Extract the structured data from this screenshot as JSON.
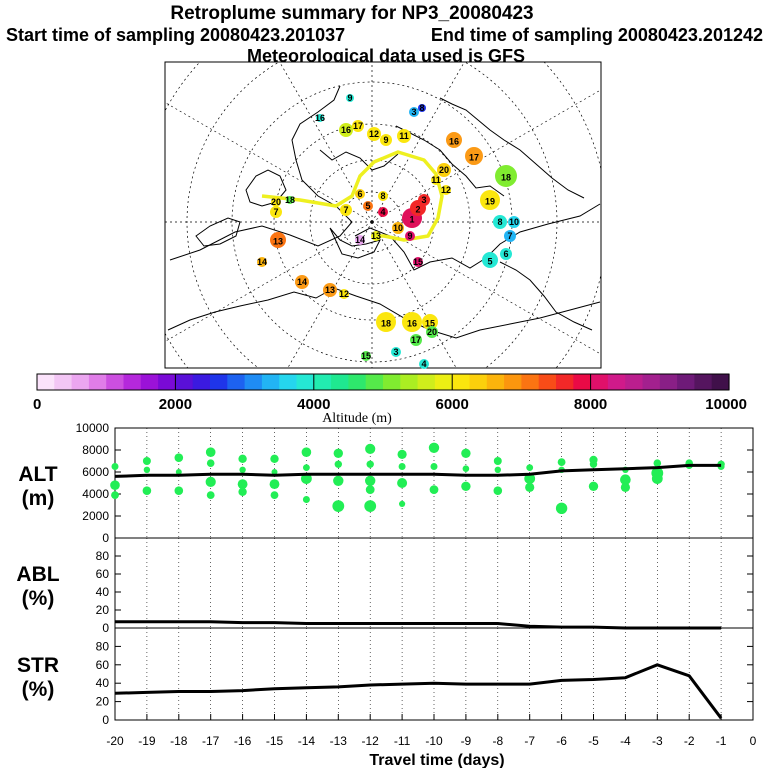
{
  "title": "Retroplume summary for NP3_20080423",
  "start_label": "Start time of sampling 20080423.201037",
  "end_label": "End time of sampling 20080423.201242",
  "met_label": "Meteorological data used is GFS",
  "colorbar": {
    "label": "Altitude (m)",
    "ticks": [
      "0",
      "2000",
      "4000",
      "6000",
      "8000",
      "10000"
    ],
    "colors": [
      "#fbe3fb",
      "#f3c6f5",
      "#eba6f0",
      "#e07de8",
      "#cc4fe0",
      "#b528dc",
      "#9b12d8",
      "#7a0ad6",
      "#5a10d8",
      "#3b1ae0",
      "#1f35ea",
      "#1d62f0",
      "#1f8cf4",
      "#22b4f4",
      "#25d6ee",
      "#25e8d4",
      "#22ecb0",
      "#1fe890",
      "#2ee86c",
      "#55ea4a",
      "#80ec30",
      "#abee22",
      "#cfee1c",
      "#ecef14",
      "#fbe60e",
      "#fcd00c",
      "#fcb40c",
      "#fc960e",
      "#fb7412",
      "#f84c18",
      "#f22828",
      "#ea0a46",
      "#e0106a",
      "#d01a8a",
      "#bb1e8e",
      "#a3208e",
      "#891f86",
      "#6e1a78",
      "#55155f",
      "#40104a"
    ]
  },
  "map_labels": [
    {
      "t": "1"
    },
    {
      "t": "2"
    },
    {
      "t": "3"
    },
    {
      "t": "4"
    },
    {
      "t": "5"
    },
    {
      "t": "6"
    },
    {
      "t": "7"
    },
    {
      "t": "8"
    },
    {
      "t": "9"
    },
    {
      "t": "10"
    },
    {
      "t": "11"
    },
    {
      "t": "12"
    },
    {
      "t": "13"
    },
    {
      "t": "14"
    },
    {
      "t": "15"
    },
    {
      "t": "16"
    },
    {
      "t": "17"
    },
    {
      "t": "18"
    },
    {
      "t": "19"
    },
    {
      "t": "20"
    },
    {
      "t": "5"
    },
    {
      "t": "6"
    },
    {
      "t": "7"
    },
    {
      "t": "8"
    },
    {
      "t": "10"
    },
    {
      "t": "13"
    },
    {
      "t": "14"
    },
    {
      "t": "14"
    },
    {
      "t": "13"
    },
    {
      "t": "12"
    },
    {
      "t": "18"
    },
    {
      "t": "16"
    },
    {
      "t": "15"
    },
    {
      "t": "17"
    },
    {
      "t": "20"
    },
    {
      "t": "3"
    },
    {
      "t": "4"
    },
    {
      "t": "15"
    },
    {
      "t": "16"
    },
    {
      "t": "17"
    },
    {
      "t": "12"
    },
    {
      "t": "11"
    },
    {
      "t": "9"
    },
    {
      "t": "3"
    },
    {
      "t": "8"
    },
    {
      "t": "9"
    },
    {
      "t": "7"
    },
    {
      "t": "20"
    },
    {
      "t": "18"
    },
    {
      "t": "16"
    }
  ],
  "chart_data": {
    "x": [
      -20,
      -19,
      -18,
      -17,
      -16,
      -15,
      -14,
      -13,
      -12,
      -11,
      -10,
      -9,
      -8,
      -7,
      -6,
      -5,
      -4,
      -3,
      -2,
      -1
    ],
    "xlabel": "Travel time (days)",
    "xticks": [
      "-20",
      "-19",
      "-18",
      "-17",
      "-16",
      "-15",
      "-14",
      "-13",
      "-12",
      "-11",
      "-10",
      "-9",
      "-8",
      "-7",
      "-6",
      "-5",
      "-4",
      "-3",
      "-2",
      "-1",
      "0"
    ],
    "panels": [
      {
        "name": "ALT",
        "label_top": "ALT",
        "label_bottom": "(m)",
        "yticks": [
          "0",
          "2000",
          "4000",
          "6000",
          "8000",
          "10000"
        ],
        "ylim": [
          0,
          10000
        ],
        "type": "line+scatter",
        "line_x": [
          -20,
          -19,
          -18,
          -17,
          -16,
          -15,
          -14,
          -13,
          -12,
          -11,
          -10,
          -9,
          -8,
          -7,
          -6,
          -5,
          -4,
          -3,
          -2,
          -1
        ],
        "line_y": [
          5600,
          5700,
          5700,
          5800,
          5800,
          5700,
          5800,
          5800,
          5800,
          5800,
          5800,
          5700,
          5700,
          5800,
          6100,
          6200,
          6300,
          6400,
          6600,
          6600
        ],
        "scatter": [
          [
            -20,
            6500
          ],
          [
            -20,
            4800
          ],
          [
            -20,
            3900
          ],
          [
            -19,
            7000
          ],
          [
            -19,
            6200
          ],
          [
            -19,
            4300
          ],
          [
            -18,
            7300
          ],
          [
            -18,
            6000
          ],
          [
            -18,
            4300
          ],
          [
            -17,
            7800
          ],
          [
            -17,
            6800
          ],
          [
            -17,
            5100
          ],
          [
            -17,
            3900
          ],
          [
            -16,
            7200
          ],
          [
            -16,
            6200
          ],
          [
            -16,
            4900
          ],
          [
            -16,
            4200
          ],
          [
            -15,
            7200
          ],
          [
            -15,
            6000
          ],
          [
            -15,
            4900
          ],
          [
            -15,
            3900
          ],
          [
            -14,
            7800
          ],
          [
            -14,
            6400
          ],
          [
            -14,
            5400
          ],
          [
            -14,
            3500
          ],
          [
            -13,
            7700
          ],
          [
            -13,
            6700
          ],
          [
            -13,
            5200
          ],
          [
            -13,
            2900
          ],
          [
            -12,
            8100
          ],
          [
            -12,
            6700
          ],
          [
            -12,
            5200
          ],
          [
            -12,
            4400
          ],
          [
            -12,
            2900
          ],
          [
            -11,
            7600
          ],
          [
            -11,
            6500
          ],
          [
            -11,
            5000
          ],
          [
            -11,
            3100
          ],
          [
            -10,
            8200
          ],
          [
            -10,
            6500
          ],
          [
            -10,
            4400
          ],
          [
            -9,
            7700
          ],
          [
            -9,
            6300
          ],
          [
            -9,
            4700
          ],
          [
            -8,
            7000
          ],
          [
            -8,
            6200
          ],
          [
            -8,
            4300
          ],
          [
            -7,
            6400
          ],
          [
            -7,
            5400
          ],
          [
            -7,
            4600
          ],
          [
            -6,
            6900
          ],
          [
            -6,
            6200
          ],
          [
            -6,
            2700
          ],
          [
            -5,
            7100
          ],
          [
            -5,
            6700
          ],
          [
            -5,
            4700
          ],
          [
            -4,
            6200
          ],
          [
            -4,
            5300
          ],
          [
            -4,
            4600
          ],
          [
            -3,
            6800
          ],
          [
            -3,
            5900
          ],
          [
            -3,
            5400
          ],
          [
            -2,
            6800
          ],
          [
            -2,
            6600
          ],
          [
            -1,
            6700
          ],
          [
            -1,
            6500
          ]
        ],
        "scatter_color": "#22ee55"
      },
      {
        "name": "ABL",
        "label_top": "ABL",
        "label_bottom": "(%)",
        "yticks": [
          "0",
          "20",
          "40",
          "60",
          "80"
        ],
        "ylim": [
          0,
          100
        ],
        "type": "line",
        "line_x": [
          -20,
          -19,
          -18,
          -17,
          -16,
          -15,
          -14,
          -13,
          -12,
          -11,
          -10,
          -9,
          -8,
          -7,
          -6,
          -5,
          -4,
          -3,
          -2,
          -1
        ],
        "line_y": [
          7,
          7,
          7,
          7,
          6,
          6,
          5,
          5,
          5,
          5,
          5,
          5,
          5,
          2,
          1,
          1,
          0,
          0,
          0,
          0
        ]
      },
      {
        "name": "STR",
        "label_top": "STR",
        "label_bottom": "(%)",
        "yticks": [
          "0",
          "20",
          "40",
          "60",
          "80"
        ],
        "ylim": [
          0,
          100
        ],
        "type": "line",
        "line_x": [
          -20,
          -19,
          -18,
          -17,
          -16,
          -15,
          -14,
          -13,
          -12,
          -11,
          -10,
          -9,
          -8,
          -7,
          -6,
          -5,
          -4,
          -3,
          -2,
          -1
        ],
        "line_y": [
          29,
          30,
          31,
          31,
          32,
          34,
          35,
          36,
          38,
          39,
          40,
          39,
          39,
          39,
          43,
          44,
          46,
          60,
          48,
          2
        ]
      }
    ]
  }
}
